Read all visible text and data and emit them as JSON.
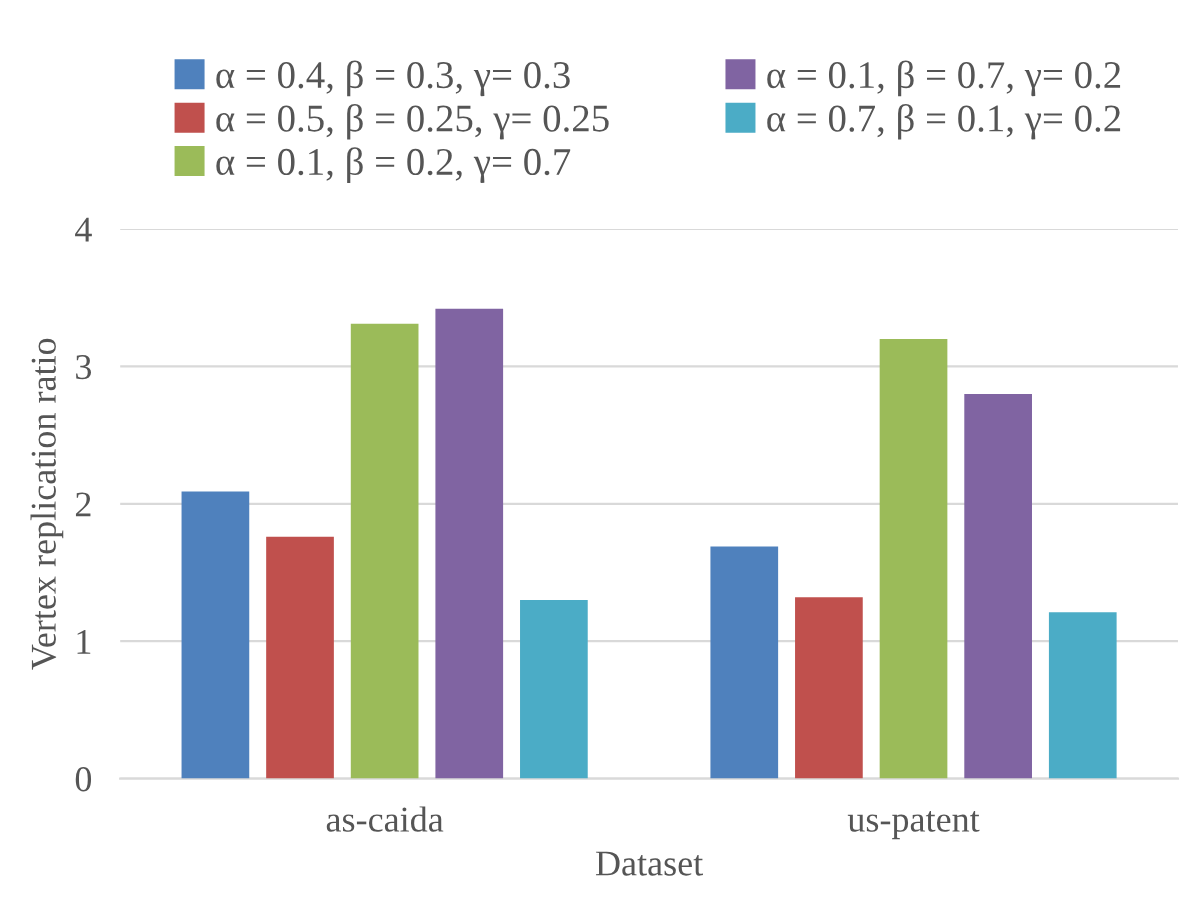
{
  "chart_data": {
    "type": "bar",
    "xlabel": "Dataset",
    "ylabel": "Vertex replication ratio",
    "categories": [
      "as-caida",
      "us-patent"
    ],
    "series": [
      {
        "name": "α = 0.4, β = 0.3, γ= 0.3",
        "color": "#4f81bd",
        "values": [
          2.09,
          1.69
        ]
      },
      {
        "name": "α = 0.5, β = 0.25, γ= 0.25",
        "color": "#c0504d",
        "values": [
          1.76,
          1.32
        ]
      },
      {
        "name": "α = 0.1, β = 0.2, γ= 0.7",
        "color": "#9bbb59",
        "values": [
          3.31,
          3.2
        ]
      },
      {
        "name": "α = 0.1, β = 0.7, γ= 0.2",
        "color": "#8064a2",
        "values": [
          3.42,
          2.8
        ]
      },
      {
        "name": "α = 0.7, β = 0.1, γ= 0.2",
        "color": "#4bacc6",
        "values": [
          1.3,
          1.21
        ]
      }
    ],
    "ylim": [
      0,
      4
    ],
    "yticks": [
      0,
      1,
      2,
      3,
      4
    ],
    "grid": "y",
    "legend": "top"
  }
}
